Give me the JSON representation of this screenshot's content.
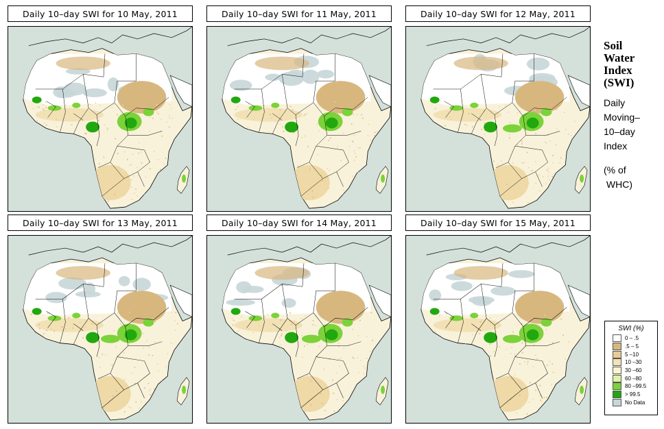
{
  "panels": [
    {
      "title": "Daily 10–day SWI for  10 May, 2011",
      "variant": 0
    },
    {
      "title": "Daily 10–day SWI for  11 May, 2011",
      "variant": 1
    },
    {
      "title": "Daily 10–day SWI for  12 May, 2011",
      "variant": 2
    },
    {
      "title": "Daily 10–day SWI for  13 May, 2011",
      "variant": 3
    },
    {
      "title": "Daily 10–day SWI for  14 May, 2011",
      "variant": 4
    },
    {
      "title": "Daily 10–day SWI for  15 May, 2011",
      "variant": 5
    }
  ],
  "sidebar": {
    "title_lines": [
      "Soil",
      "Water",
      "Index",
      "(SWI)"
    ],
    "subtitle_lines": [
      "Daily",
      "Moving–",
      "10–day",
      "Index"
    ],
    "unit_lines": [
      "(% of",
      " WHC)"
    ]
  },
  "legend": {
    "title": "SWI (%)",
    "items": [
      {
        "label": "0 – .5",
        "color": "#ffffff"
      },
      {
        "label": ".5 – 5",
        "color": "#d8b77f"
      },
      {
        "label": "5 –10",
        "color": "#e6cc98"
      },
      {
        "label": "10 –30",
        "color": "#f3e2b4"
      },
      {
        "label": "30 –60",
        "color": "#fbf4d2"
      },
      {
        "label": "60 –80",
        "color": "#dff2a5"
      },
      {
        "label": "80 –99.5",
        "color": "#7bd23a"
      },
      {
        "label": "> 99.5",
        "color": "#22a80f"
      },
      {
        "label": "No Data",
        "color": "#c8d6d8"
      }
    ]
  },
  "colors": {
    "ocean": "#d4e0da",
    "land": "#f9f2da",
    "sahara_white": "#ffffff",
    "dry": "#d8b77f",
    "green": "#7bd23a",
    "dark_green": "#22a80f",
    "no_data": "#c8d6d8"
  }
}
